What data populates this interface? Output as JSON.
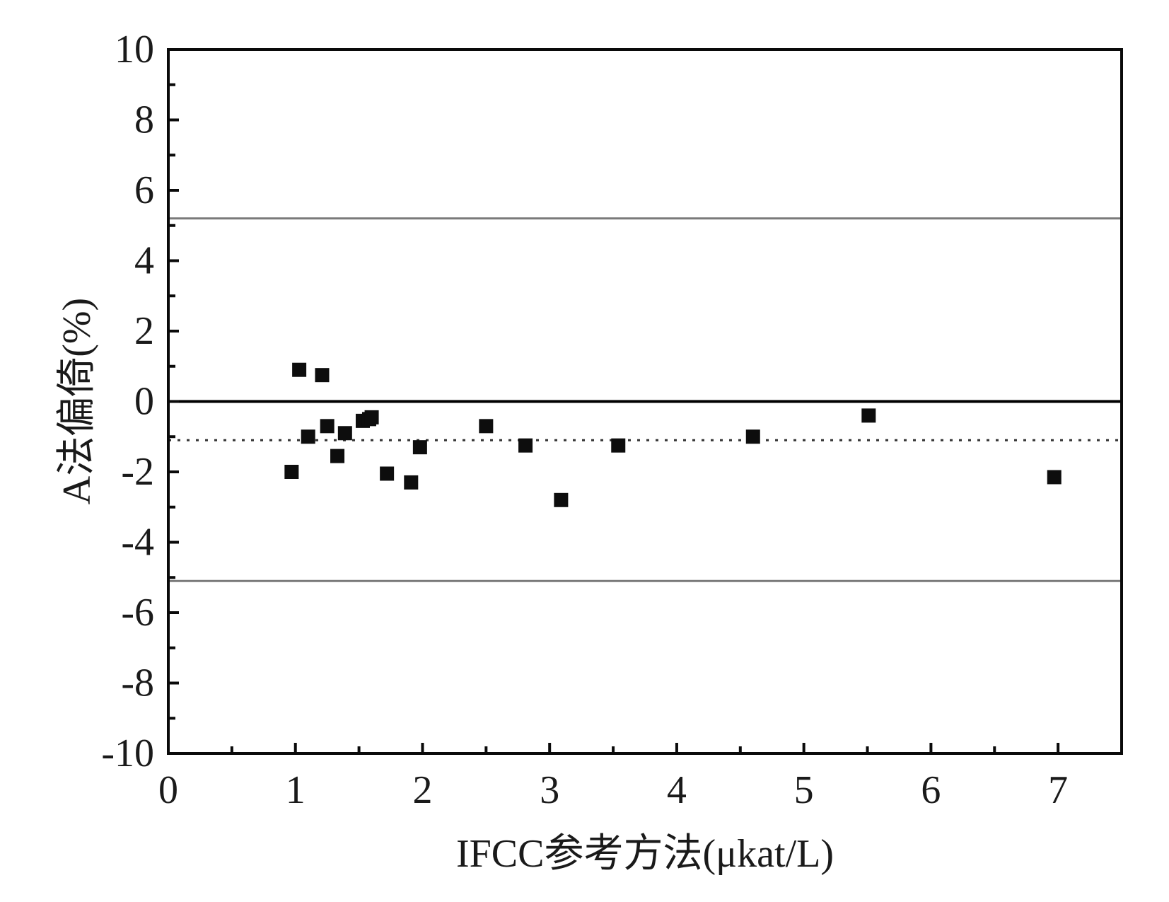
{
  "chart_data": {
    "type": "scatter",
    "xlabel": "IFCC参考方法(μkat/L)",
    "ylabel": "A法偏倚(%)",
    "xlim": [
      0,
      7.5
    ],
    "ylim": [
      -10,
      10
    ],
    "x_ticks": [
      0,
      1,
      2,
      3,
      4,
      5,
      6,
      7
    ],
    "y_ticks": [
      10,
      8,
      6,
      4,
      2,
      0,
      -2,
      -4,
      -6,
      -8,
      -10
    ],
    "x_tick_labels": [
      "0",
      "1",
      "2",
      "3",
      "4",
      "5",
      "6",
      "7"
    ],
    "y_tick_labels": [
      "10",
      "8",
      "6",
      "4",
      "2",
      "0",
      "-2",
      "-4",
      "-6",
      "-8",
      "-10"
    ],
    "grid": false,
    "reference_lines": [
      {
        "y": 5.2,
        "style": "solid",
        "color": "#7a7a7a"
      },
      {
        "y": 0,
        "style": "solid",
        "color": "#000000"
      },
      {
        "y": -1.1,
        "style": "dotted",
        "color": "#333333"
      },
      {
        "y": -5.1,
        "style": "solid",
        "color": "#7a7a7a"
      }
    ],
    "points": [
      {
        "x": 0.97,
        "y": -2.0
      },
      {
        "x": 1.03,
        "y": 0.9
      },
      {
        "x": 1.1,
        "y": -1.0
      },
      {
        "x": 1.21,
        "y": 0.75
      },
      {
        "x": 1.25,
        "y": -0.7
      },
      {
        "x": 1.33,
        "y": -1.55
      },
      {
        "x": 1.39,
        "y": -0.9
      },
      {
        "x": 1.53,
        "y": -0.55
      },
      {
        "x": 1.58,
        "y": -0.5
      },
      {
        "x": 1.6,
        "y": -0.45
      },
      {
        "x": 1.72,
        "y": -2.05
      },
      {
        "x": 1.91,
        "y": -2.3
      },
      {
        "x": 1.98,
        "y": -1.3
      },
      {
        "x": 2.5,
        "y": -0.7
      },
      {
        "x": 2.81,
        "y": -1.25
      },
      {
        "x": 3.09,
        "y": -2.8
      },
      {
        "x": 3.54,
        "y": -1.25
      },
      {
        "x": 4.6,
        "y": -1.0
      },
      {
        "x": 5.51,
        "y": -0.4
      },
      {
        "x": 6.97,
        "y": -2.15
      }
    ],
    "marker_color": "#0d0d0d"
  }
}
